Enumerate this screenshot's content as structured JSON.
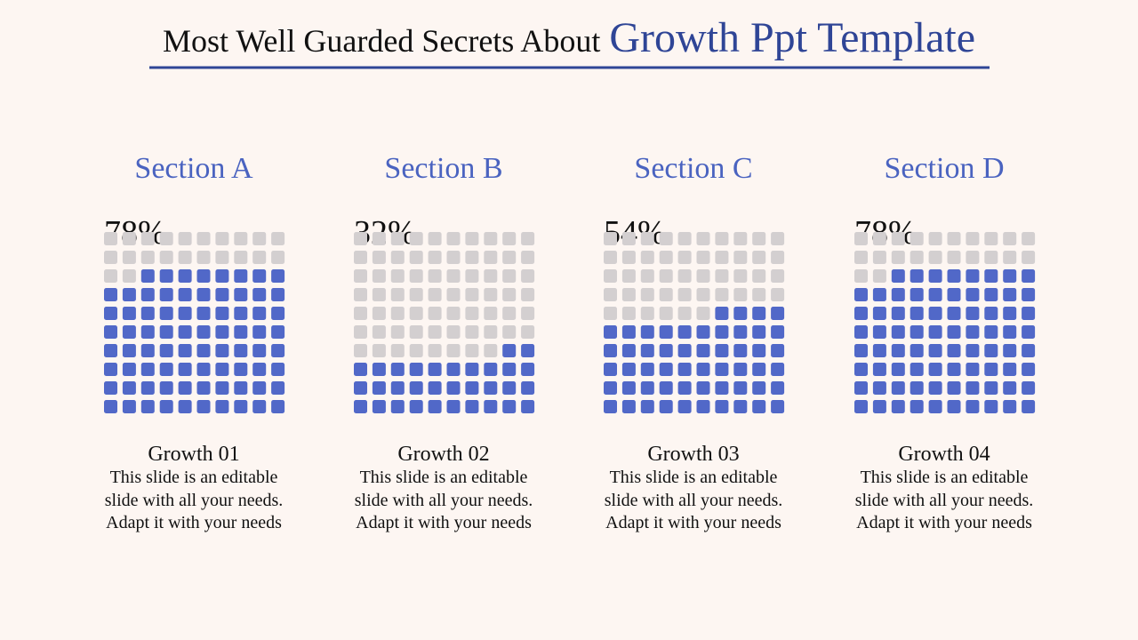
{
  "header": {
    "title": "Most Well Guarded Secrets About",
    "title_highlight": "Growth Ppt Template"
  },
  "chart_data": [
    {
      "type": "waffle",
      "title": "Section A",
      "values": [
        78
      ],
      "value_labels": [
        "78%"
      ],
      "color": "#5168c8",
      "empty_color": "#d3cfd0",
      "subtitle": "Growth 01",
      "description": "This slide is an editable slide with all your needs. Adapt it with your needs"
    },
    {
      "type": "waffle",
      "title": "Section B",
      "values": [
        32
      ],
      "value_labels": [
        "32%"
      ],
      "color": "#5168c8",
      "empty_color": "#d3cfd0",
      "subtitle": "Growth 02",
      "description": "This slide is an editable slide with all your needs. Adapt it with your needs"
    },
    {
      "type": "waffle",
      "title": "Section C",
      "values": [
        54
      ],
      "value_labels": [
        "54%"
      ],
      "color": "#5168c8",
      "empty_color": "#d3cfd0",
      "subtitle": "Growth 03",
      "description": "This slide is an editable slide with all your needs. Adapt it with your needs"
    },
    {
      "type": "waffle",
      "title": "Section D",
      "values": [
        78
      ],
      "value_labels": [
        "78%"
      ],
      "color": "#5168c8",
      "empty_color": "#d3cfd0",
      "subtitle": "Growth 04",
      "description": "This slide is an editable slide with all your needs. Adapt it with your needs"
    }
  ]
}
